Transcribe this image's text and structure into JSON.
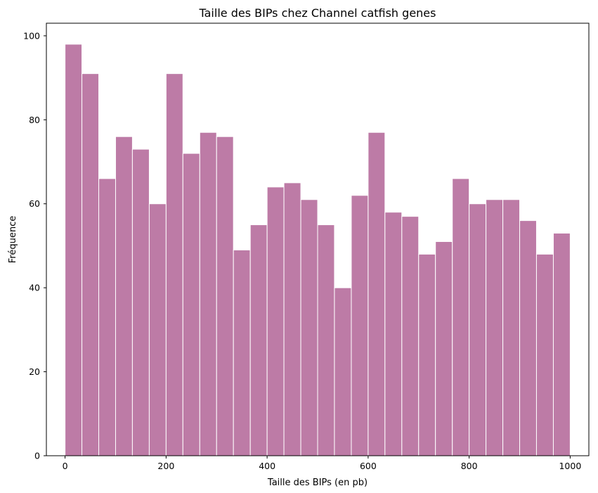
{
  "chart_data": {
    "type": "bar",
    "title": "Taille des BIPs chez Channel catfish genes",
    "xlabel": "Taille des BIPs (en pb)",
    "ylabel": "Fréquence",
    "bin_edges": [
      0,
      33.3,
      66.7,
      100,
      133.3,
      166.7,
      200,
      233.3,
      266.7,
      300,
      333.3,
      366.7,
      400,
      433.3,
      466.7,
      500,
      533.3,
      566.7,
      600,
      633.3,
      666.7,
      700,
      733.3,
      766.7,
      800,
      833.3,
      866.7,
      900,
      933.3,
      966.7,
      1000
    ],
    "values": [
      98,
      91,
      66,
      76,
      73,
      60,
      91,
      72,
      77,
      76,
      49,
      55,
      64,
      65,
      61,
      55,
      40,
      62,
      77,
      58,
      57,
      48,
      51,
      66,
      60,
      61,
      61,
      56,
      48,
      53
    ],
    "xlim": [
      -37,
      1037
    ],
    "ylim": [
      0,
      103
    ],
    "xticks": [
      0,
      200,
      400,
      600,
      800,
      1000
    ],
    "yticks": [
      0,
      20,
      40,
      60,
      80,
      100
    ],
    "bar_color": "#bd7ba6",
    "edge_color": "#ffffff",
    "grid": false,
    "legend": "none"
  }
}
